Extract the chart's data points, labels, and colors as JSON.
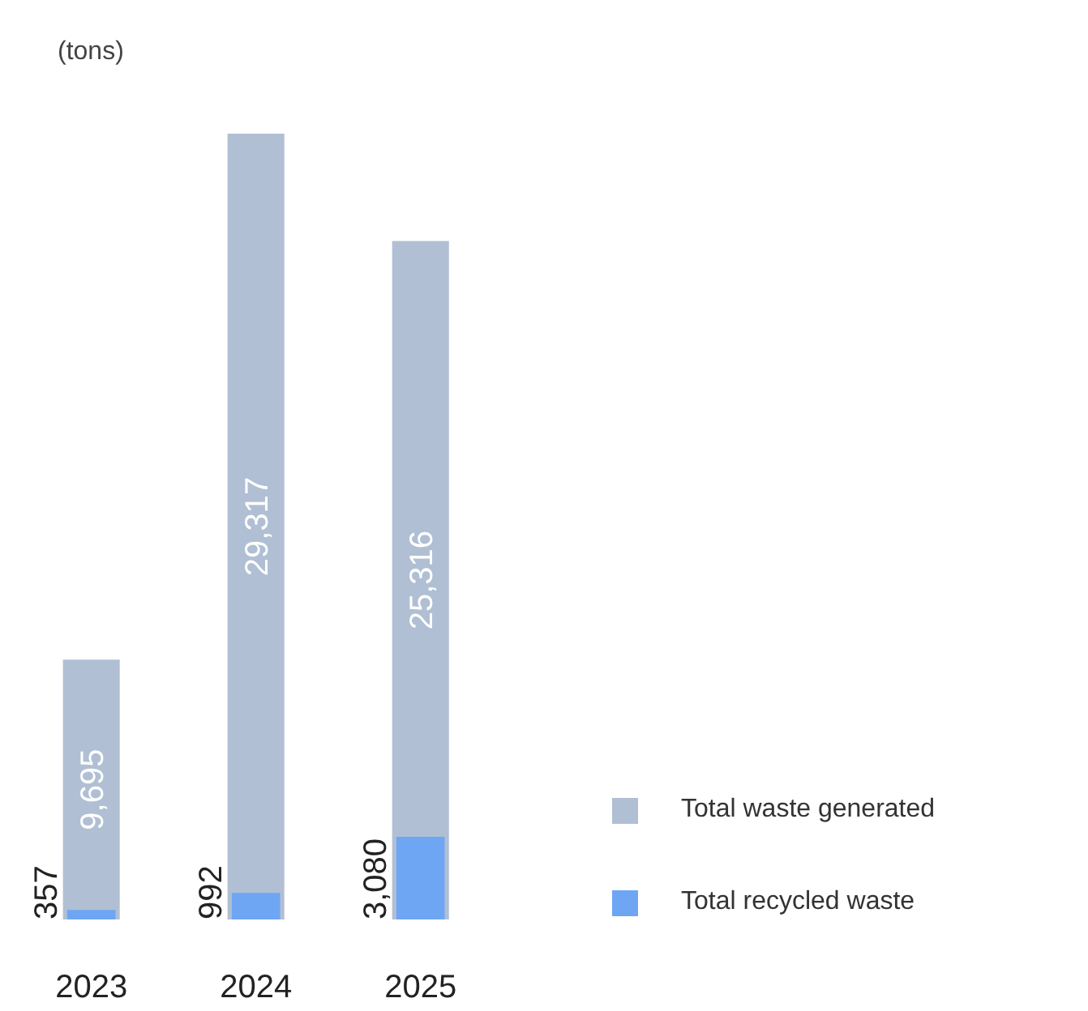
{
  "chart_data": {
    "type": "bar",
    "ylabel": "(tons)",
    "categories": [
      "2023",
      "2024",
      "2025"
    ],
    "series": [
      {
        "name": "Total waste generated",
        "color": "#b0bfd3",
        "values": [
          9695,
          29317,
          25316
        ],
        "value_labels": [
          "9,695",
          "29,317",
          "25,316"
        ]
      },
      {
        "name": "Total recycled waste",
        "color": "#6ea6f4",
        "values": [
          357,
          992,
          3080
        ],
        "value_labels": [
          "357",
          "992",
          "3,080"
        ]
      }
    ],
    "legend": "right"
  }
}
